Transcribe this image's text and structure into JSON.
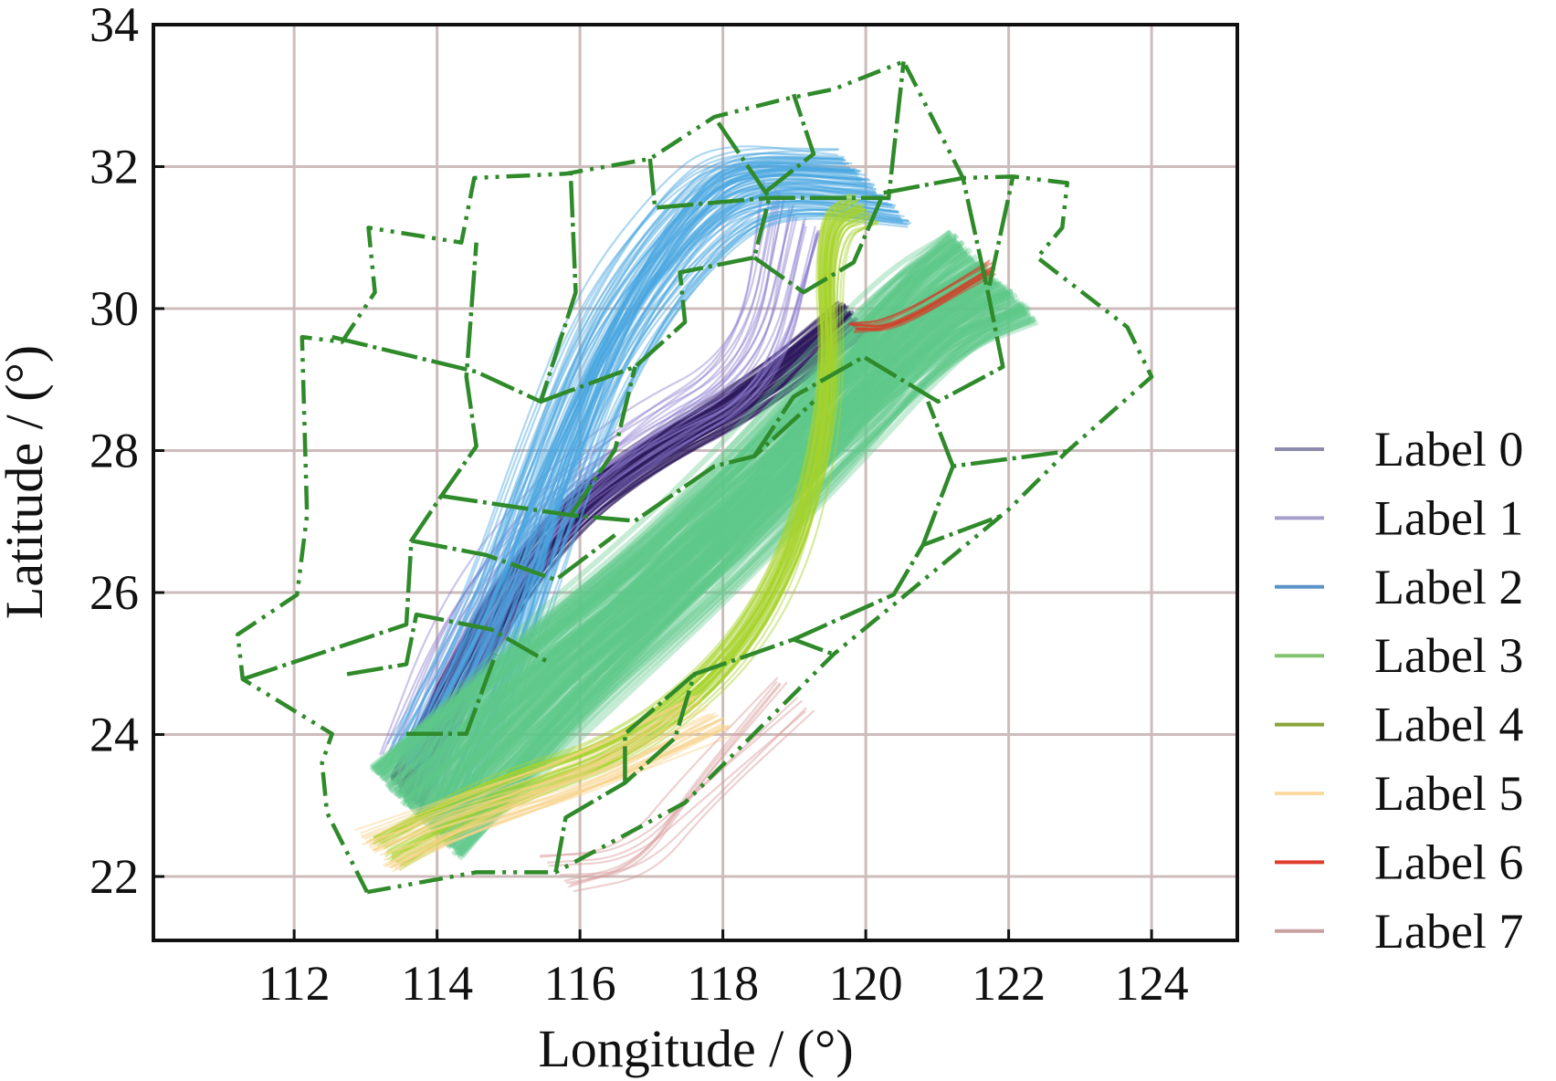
{
  "chart_data": {
    "type": "line",
    "title": "",
    "xlabel": "Longitude / (°)",
    "ylabel": "Latitude / (°)",
    "xlim": [
      110.03,
      125.2
    ],
    "ylim": [
      21.1,
      34.0
    ],
    "xticks": [
      112,
      114,
      116,
      118,
      120,
      122,
      124
    ],
    "yticks": [
      22,
      24,
      26,
      28,
      30,
      32,
      34
    ],
    "grid": true,
    "legend_position": "right",
    "series": [
      {
        "name": "Label 0",
        "color": "#8e8aab",
        "draw_color": "#2d1a5e",
        "count": 90,
        "spread": 0.3,
        "path": [
          [
            113.57,
            23.18
          ],
          [
            114.55,
            25.27
          ],
          [
            115.66,
            26.95
          ],
          [
            116.91,
            27.92
          ],
          [
            118.44,
            28.76
          ],
          [
            119.83,
            29.88
          ]
        ]
      },
      {
        "name": "Label 1",
        "color": "#a8a0cc",
        "draw_color": "#8f7fd0",
        "count": 25,
        "spread": 0.6,
        "path": [
          [
            113.6,
            23.3
          ],
          [
            114.4,
            25.5
          ],
          [
            115.5,
            27.1
          ],
          [
            116.9,
            28.2
          ],
          [
            118.5,
            29.1
          ],
          [
            119.0,
            31.4
          ]
        ]
      },
      {
        "name": "Label 2",
        "color": "#5a93c8",
        "draw_color": "#4aa6e0",
        "count": 90,
        "spread": 0.75,
        "path": [
          [
            113.85,
            23.32
          ],
          [
            114.82,
            25.27
          ],
          [
            115.66,
            27.78
          ],
          [
            116.49,
            29.74
          ],
          [
            117.6,
            31.28
          ],
          [
            118.44,
            31.84
          ],
          [
            120.11,
            31.7
          ]
        ]
      },
      {
        "name": "Label 3",
        "color": "#82c46e",
        "draw_color": "#5fc98a",
        "count": 160,
        "spread": 0.9,
        "path": [
          [
            113.71,
            22.9
          ],
          [
            115.66,
            24.85
          ],
          [
            117.6,
            26.53
          ],
          [
            119.27,
            28.21
          ],
          [
            120.8,
            29.88
          ],
          [
            121.78,
            30.44
          ]
        ]
      },
      {
        "name": "Label 4",
        "color": "#8aa43a",
        "draw_color": "#a6d22a",
        "count": 45,
        "spread": 0.3,
        "path": [
          [
            113.29,
            22.34
          ],
          [
            114.82,
            23.18
          ],
          [
            116.91,
            23.88
          ],
          [
            118.72,
            25.69
          ],
          [
            119.55,
            28.48
          ],
          [
            119.41,
            31.14
          ],
          [
            119.97,
            31.42
          ]
        ]
      },
      {
        "name": "Label 5",
        "color": "#fcd9a0",
        "draw_color": "#f8d28a",
        "count": 30,
        "spread": 0.4,
        "path": [
          [
            113.15,
            22.34
          ],
          [
            114.55,
            22.9
          ],
          [
            116.21,
            23.46
          ],
          [
            117.88,
            24.29
          ]
        ]
      },
      {
        "name": "Label 6",
        "color": "#e03c2c",
        "draw_color": "#e0301e",
        "count": 12,
        "spread": 0.1,
        "path": [
          [
            119.83,
            29.74
          ],
          [
            120.39,
            29.74
          ],
          [
            121.78,
            30.58
          ]
        ]
      },
      {
        "name": "Label 7",
        "color": "#c8a0a0",
        "draw_color": "#d89a9a",
        "count": 10,
        "spread": 0.35,
        "path": [
          [
            115.66,
            22.06
          ],
          [
            116.77,
            22.2
          ],
          [
            117.6,
            23.18
          ],
          [
            118.99,
            24.57
          ]
        ]
      }
    ],
    "sector_outer_boundary": [
      [
        113.02,
        21.78
      ],
      [
        112.46,
        22.9
      ],
      [
        112.39,
        23.6
      ],
      [
        112.53,
        24.01
      ],
      [
        111.28,
        24.78
      ],
      [
        111.21,
        25.41
      ],
      [
        112.04,
        25.97
      ],
      [
        112.18,
        27.09
      ],
      [
        112.11,
        29.6
      ],
      [
        112.67,
        29.53
      ],
      [
        113.13,
        30.23
      ],
      [
        113.04,
        31.14
      ],
      [
        114.34,
        30.93
      ],
      [
        114.52,
        31.84
      ],
      [
        115.8,
        31.9
      ],
      [
        116.98,
        32.11
      ],
      [
        117.88,
        32.7
      ],
      [
        118.86,
        32.95
      ],
      [
        119.55,
        33.09
      ],
      [
        120.53,
        33.48
      ],
      [
        121.36,
        31.84
      ],
      [
        122.06,
        31.86
      ],
      [
        122.82,
        31.77
      ],
      [
        122.75,
        31.14
      ],
      [
        122.4,
        30.72
      ],
      [
        123.66,
        29.74
      ],
      [
        124.0,
        29.04
      ],
      [
        122.82,
        27.99
      ],
      [
        121.99,
        27.16
      ],
      [
        119.55,
        25.13
      ],
      [
        117.47,
        23.04
      ],
      [
        115.66,
        22.06
      ],
      [
        114.55,
        22.06
      ],
      [
        113.02,
        21.78
      ]
    ],
    "sector_inner_boundaries": [
      [
        [
          111.28,
          24.78
        ],
        [
          113.57,
          25.55
        ],
        [
          113.64,
          26.73
        ],
        [
          114.06,
          27.36
        ],
        [
          114.55,
          28.06
        ],
        [
          114.41,
          29.04
        ],
        [
          114.55,
          30.93
        ]
      ],
      [
        [
          112.53,
          29.6
        ],
        [
          114.55,
          29.11
        ],
        [
          115.45,
          28.69
        ],
        [
          115.94,
          30.23
        ],
        [
          115.87,
          31.9
        ]
      ],
      [
        [
          115.45,
          28.69
        ],
        [
          116.77,
          29.18
        ],
        [
          117.47,
          29.81
        ],
        [
          117.4,
          30.51
        ],
        [
          118.44,
          30.72
        ],
        [
          118.65,
          31.56
        ],
        [
          117.88,
          32.7
        ]
      ],
      [
        [
          116.98,
          32.11
        ],
        [
          117.05,
          31.42
        ],
        [
          118.65,
          31.56
        ],
        [
          120.32,
          31.56
        ],
        [
          120.53,
          33.48
        ]
      ],
      [
        [
          118.44,
          30.72
        ],
        [
          119.13,
          30.23
        ],
        [
          119.83,
          30.65
        ],
        [
          120.25,
          31.63
        ]
      ],
      [
        [
          118.58,
          31.63
        ],
        [
          119.27,
          32.18
        ],
        [
          118.99,
          33.02
        ]
      ],
      [
        [
          120.25,
          31.63
        ],
        [
          121.36,
          31.84
        ],
        [
          121.71,
          30.23
        ],
        [
          122.06,
          31.86
        ]
      ],
      [
        [
          114.06,
          27.36
        ],
        [
          115.87,
          27.09
        ],
        [
          116.77,
          27.01
        ],
        [
          117.88,
          27.78
        ],
        [
          118.44,
          27.92
        ],
        [
          119.27,
          28.69
        ]
      ],
      [
        [
          115.87,
          27.09
        ],
        [
          116.49,
          28.01
        ],
        [
          116.77,
          29.18
        ]
      ],
      [
        [
          118.44,
          27.92
        ],
        [
          118.99,
          28.76
        ],
        [
          119.97,
          29.32
        ],
        [
          121.01,
          28.69
        ],
        [
          121.92,
          29.18
        ],
        [
          121.71,
          30.23
        ]
      ],
      [
        [
          113.64,
          26.73
        ],
        [
          114.68,
          26.53
        ],
        [
          115.66,
          26.18
        ],
        [
          116.49,
          26.81
        ]
      ],
      [
        [
          112.74,
          24.85
        ],
        [
          113.57,
          24.99
        ],
        [
          113.71,
          25.69
        ],
        [
          114.76,
          25.48
        ],
        [
          115.59,
          25.0
        ]
      ],
      [
        [
          113.57,
          24.01
        ],
        [
          114.41,
          24.01
        ],
        [
          114.82,
          25.13
        ]
      ],
      [
        [
          115.66,
          22.06
        ],
        [
          115.8,
          22.83
        ],
        [
          116.63,
          23.32
        ],
        [
          117.33,
          23.95
        ],
        [
          117.6,
          24.85
        ],
        [
          118.99,
          25.34
        ],
        [
          119.55,
          25.13
        ]
      ],
      [
        [
          116.63,
          23.32
        ],
        [
          116.63,
          24.01
        ],
        [
          117.6,
          24.85
        ]
      ],
      [
        [
          118.99,
          25.34
        ],
        [
          120.39,
          25.97
        ],
        [
          120.8,
          26.67
        ],
        [
          121.92,
          27.09
        ]
      ],
      [
        [
          120.8,
          26.67
        ],
        [
          121.22,
          27.78
        ],
        [
          122.82,
          27.99
        ]
      ],
      [
        [
          121.22,
          27.78
        ],
        [
          120.87,
          28.69
        ]
      ]
    ]
  }
}
